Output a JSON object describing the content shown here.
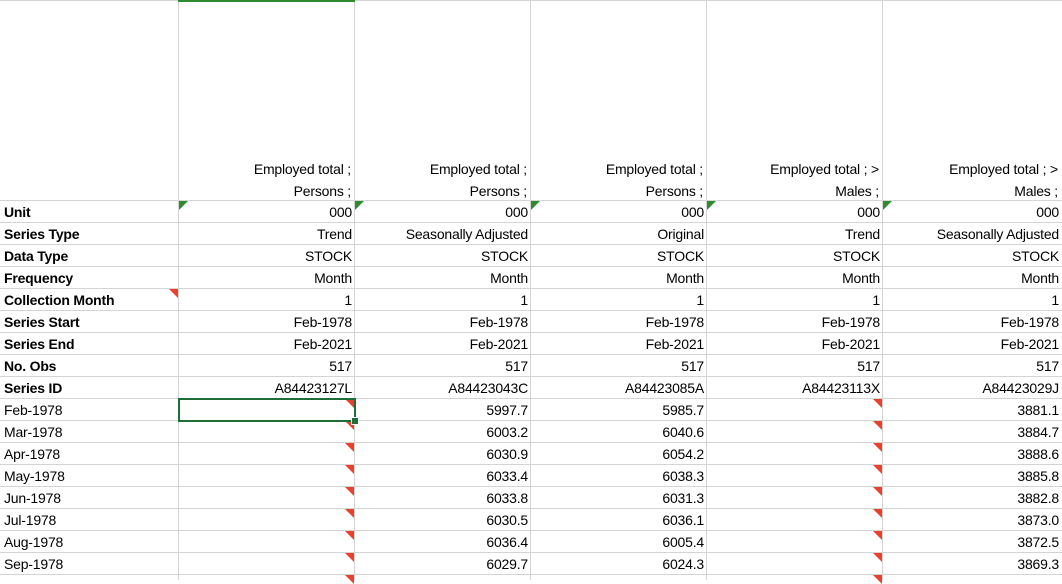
{
  "colors": {
    "grid": "#d4d4d4",
    "comment_marker": "#e8412c",
    "error_marker": "#2e8b2e",
    "selection": "#1d6e37"
  },
  "headers": [
    {
      "line1": "",
      "line2": ""
    },
    {
      "line1": "Employed total ;",
      "line2": "Persons ;"
    },
    {
      "line1": "Employed total ;",
      "line2": "Persons ;"
    },
    {
      "line1": "Employed total ;",
      "line2": "Persons ;"
    },
    {
      "line1": "Employed total ;  >",
      "line2": "Males ;"
    },
    {
      "line1": "Employed total ;  >",
      "line2": "Males ;"
    }
  ],
  "meta_rows": [
    {
      "label": "Unit",
      "values": [
        "000",
        "000",
        "000",
        "000",
        "000"
      ]
    },
    {
      "label": "Series Type",
      "values": [
        "Trend",
        "Seasonally Adjusted",
        "Original",
        "Trend",
        "Seasonally Adjusted"
      ]
    },
    {
      "label": "Data Type",
      "values": [
        "STOCK",
        "STOCK",
        "STOCK",
        "STOCK",
        "STOCK"
      ]
    },
    {
      "label": "Frequency",
      "values": [
        "Month",
        "Month",
        "Month",
        "Month",
        "Month"
      ]
    },
    {
      "label": "Collection Month",
      "values": [
        "1",
        "1",
        "1",
        "1",
        "1"
      ]
    },
    {
      "label": "Series Start",
      "values": [
        "Feb-1978",
        "Feb-1978",
        "Feb-1978",
        "Feb-1978",
        "Feb-1978"
      ]
    },
    {
      "label": "Series End",
      "values": [
        "Feb-2021",
        "Feb-2021",
        "Feb-2021",
        "Feb-2021",
        "Feb-2021"
      ]
    },
    {
      "label": "No. Obs",
      "values": [
        "517",
        "517",
        "517",
        "517",
        "517"
      ]
    },
    {
      "label": "Series ID",
      "values": [
        "A84423127L",
        "A84423043C",
        "A84423085A",
        "A84423113X",
        "A84423029J"
      ]
    }
  ],
  "data_rows": [
    {
      "date": "Feb-1978",
      "values": [
        "",
        "5997.7",
        "5985.7",
        "",
        "3881.1"
      ]
    },
    {
      "date": "Mar-1978",
      "values": [
        "",
        "6003.2",
        "6040.6",
        "",
        "3884.7"
      ]
    },
    {
      "date": "Apr-1978",
      "values": [
        "",
        "6030.9",
        "6054.2",
        "",
        "3888.6"
      ]
    },
    {
      "date": "May-1978",
      "values": [
        "",
        "6033.4",
        "6038.3",
        "",
        "3885.8"
      ]
    },
    {
      "date": "Jun-1978",
      "values": [
        "",
        "6033.8",
        "6031.3",
        "",
        "3882.8"
      ]
    },
    {
      "date": "Jul-1978",
      "values": [
        "",
        "6030.5",
        "6036.1",
        "",
        "3873.0"
      ]
    },
    {
      "date": "Aug-1978",
      "values": [
        "",
        "6036.4",
        "6005.4",
        "",
        "3872.5"
      ]
    },
    {
      "date": "Sep-1978",
      "values": [
        "",
        "6029.7",
        "6024.3",
        "",
        "3869.3"
      ]
    }
  ]
}
